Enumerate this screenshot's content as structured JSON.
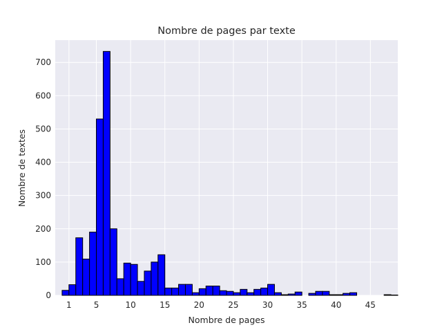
{
  "chart_data": {
    "type": "bar",
    "title": "Nombre de pages par texte",
    "xlabel": "Nombre de pages",
    "ylabel": "Nombre de textes",
    "grid": true,
    "bar_color": "#0000ff",
    "edge_color": "#000000",
    "background_color": "#eaeaf2",
    "xlim": [
      -1,
      49
    ],
    "ylim": [
      0,
      767
    ],
    "x_ticks": [
      1,
      5,
      10,
      15,
      20,
      25,
      30,
      35,
      40,
      45
    ],
    "y_ticks": [
      0,
      100,
      200,
      300,
      400,
      500,
      600,
      700
    ],
    "bin_starts": [
      0,
      1,
      2,
      3,
      4,
      5,
      6,
      7,
      8,
      9,
      10,
      11,
      12,
      13,
      14,
      15,
      16,
      17,
      18,
      19,
      20,
      21,
      22,
      23,
      24,
      25,
      26,
      27,
      28,
      29,
      30,
      31,
      32,
      33,
      34,
      35,
      36,
      37,
      38,
      39,
      40,
      41,
      42,
      43,
      44,
      45,
      46,
      47,
      48
    ],
    "values": [
      15,
      32,
      173,
      109,
      190,
      530,
      733,
      200,
      50,
      97,
      93,
      42,
      73,
      100,
      122,
      22,
      22,
      33,
      33,
      8,
      20,
      28,
      28,
      14,
      12,
      8,
      18,
      8,
      18,
      22,
      33,
      8,
      2,
      4,
      10,
      0,
      6,
      12,
      12,
      2,
      2,
      6,
      8,
      0,
      0,
      0,
      0,
      2,
      1
    ]
  }
}
